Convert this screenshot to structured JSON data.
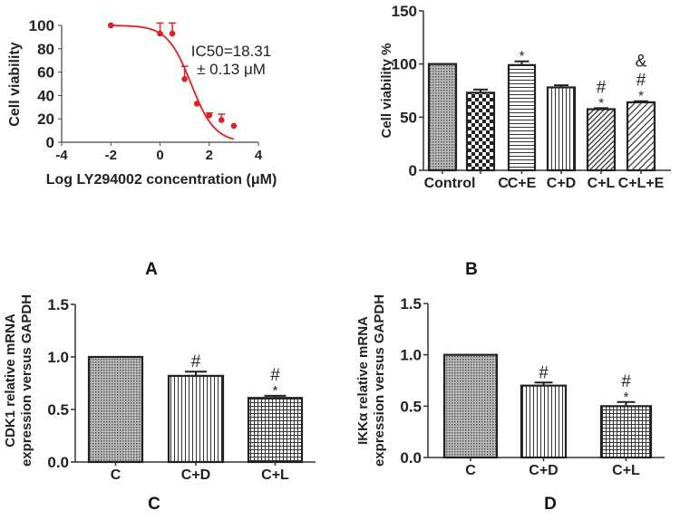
{
  "panel_labels": [
    "A",
    "B",
    "C",
    "D"
  ],
  "chart_data": [
    {
      "type": "scatter",
      "panel": "A",
      "title": "",
      "xlabel": "Log LY294002 concentration (μM)",
      "ylabel": "Cell viability",
      "xlim": [
        -4,
        4
      ],
      "ylim": [
        0,
        100
      ],
      "xticks": [
        "-4",
        "-2",
        "0",
        "2",
        "4"
      ],
      "yticks": [
        "0",
        "20",
        "40",
        "60",
        "80",
        "100"
      ],
      "x": [
        -2,
        0,
        0.5,
        1,
        1.5,
        2,
        2.5,
        3
      ],
      "y": [
        100,
        93,
        93,
        54,
        33,
        23,
        19,
        14
      ],
      "err": [
        0,
        9,
        9,
        11,
        0,
        2,
        5,
        0
      ],
      "fit": {
        "type": "sigmoid",
        "top": 100,
        "bottom": 0,
        "log_ic50": 1.263,
        "hill": -0.9
      },
      "annotation": [
        "IC50=18.31",
        "± 0.13 μM"
      ],
      "color": "#e02020"
    },
    {
      "type": "bar",
      "panel": "B",
      "ylabel": "Cell viability %",
      "ylim": [
        0,
        150
      ],
      "yticks": [
        "0",
        "50",
        "100",
        "150"
      ],
      "categories": [
        "Control",
        "C",
        "C+E",
        "C+D",
        "C+L",
        "C+L+E"
      ],
      "values": [
        100,
        73,
        99,
        78,
        57.5,
        64
      ],
      "err": [
        0,
        3,
        3.5,
        2,
        1,
        1
      ],
      "marks": [
        "",
        "",
        "*",
        "",
        "#\n*",
        "&\n#\n*"
      ],
      "patterns": [
        "dots",
        "checker",
        "hlines",
        "vlines",
        "diag",
        "diag2"
      ]
    },
    {
      "type": "bar",
      "panel": "C",
      "ylabel": "CDK1 relative mRNA expression versus GAPDH",
      "ylim": [
        0,
        1.5
      ],
      "yticks": [
        "0.0",
        "0.5",
        "1.0",
        "1.5"
      ],
      "categories": [
        "C",
        "C+D",
        "C+L"
      ],
      "values": [
        1.0,
        0.82,
        0.61
      ],
      "err": [
        0,
        0.04,
        0.02
      ],
      "marks": [
        "",
        "#",
        "#\n*"
      ],
      "patterns": [
        "dots",
        "vlines",
        "grid"
      ]
    },
    {
      "type": "bar",
      "panel": "D",
      "ylabel": "IKKα  relative mRNA expression versus GAPDH",
      "ylim": [
        0,
        1.5
      ],
      "yticks": [
        "0.0",
        "0.5",
        "1.0",
        "1.5"
      ],
      "categories": [
        "C",
        "C+D",
        "C+L"
      ],
      "values": [
        1.0,
        0.7,
        0.5
      ],
      "err": [
        0,
        0.03,
        0.04
      ],
      "marks": [
        "",
        "#",
        "#\n*"
      ],
      "patterns": [
        "dots",
        "vlines",
        "grid"
      ]
    }
  ]
}
